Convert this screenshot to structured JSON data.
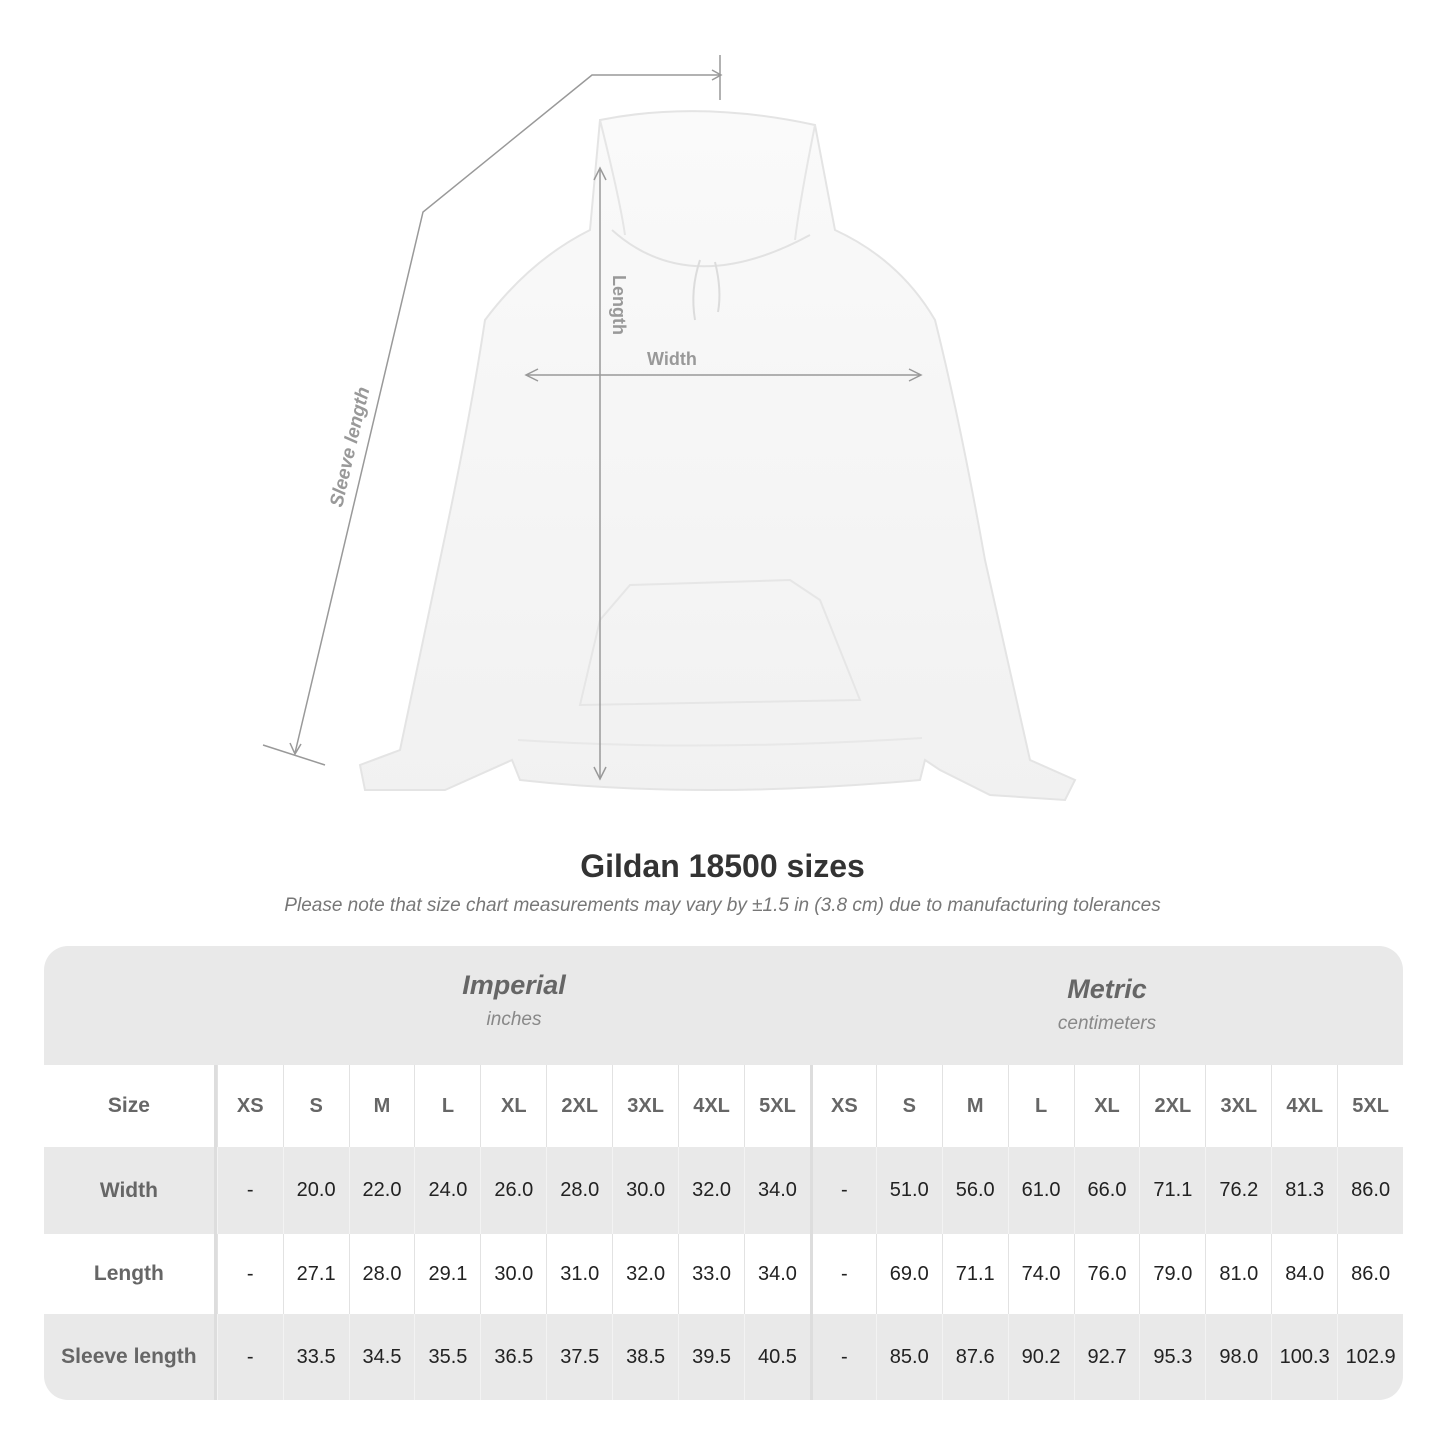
{
  "figure": {
    "labels": {
      "length": "Length",
      "width": "Width",
      "sleeve": "Sleeve length"
    },
    "garment_color": "#ffffff",
    "line_color": "#999999"
  },
  "title": "Gildan 18500 sizes",
  "note": "Please note that size chart measurements may vary by ±1.5 in (3.8 cm) due to manufacturing tolerances",
  "table": {
    "imperial": {
      "name": "Imperial",
      "unit": "inches"
    },
    "metric": {
      "name": "Metric",
      "unit": "centimeters"
    },
    "size_label": "Size",
    "sizes": [
      "XS",
      "S",
      "M",
      "L",
      "XL",
      "2XL",
      "3XL",
      "4XL",
      "5XL"
    ],
    "rows": [
      {
        "label": "Width",
        "imperial": [
          "-",
          "20.0",
          "22.0",
          "24.0",
          "26.0",
          "28.0",
          "30.0",
          "32.0",
          "34.0"
        ],
        "metric": [
          "-",
          "51.0",
          "56.0",
          "61.0",
          "66.0",
          "71.1",
          "76.2",
          "81.3",
          "86.0"
        ]
      },
      {
        "label": "Length",
        "imperial": [
          "-",
          "27.1",
          "28.0",
          "29.1",
          "30.0",
          "31.0",
          "32.0",
          "33.0",
          "34.0"
        ],
        "metric": [
          "-",
          "69.0",
          "71.1",
          "74.0",
          "76.0",
          "79.0",
          "81.0",
          "84.0",
          "86.0"
        ]
      },
      {
        "label": "Sleeve length",
        "imperial": [
          "-",
          "33.5",
          "34.5",
          "35.5",
          "36.5",
          "37.5",
          "38.5",
          "39.5",
          "40.5"
        ],
        "metric": [
          "-",
          "85.0",
          "87.6",
          "90.2",
          "92.7",
          "95.3",
          "98.0",
          "100.3",
          "102.9"
        ]
      }
    ],
    "band_color": "#e9e9e9"
  }
}
